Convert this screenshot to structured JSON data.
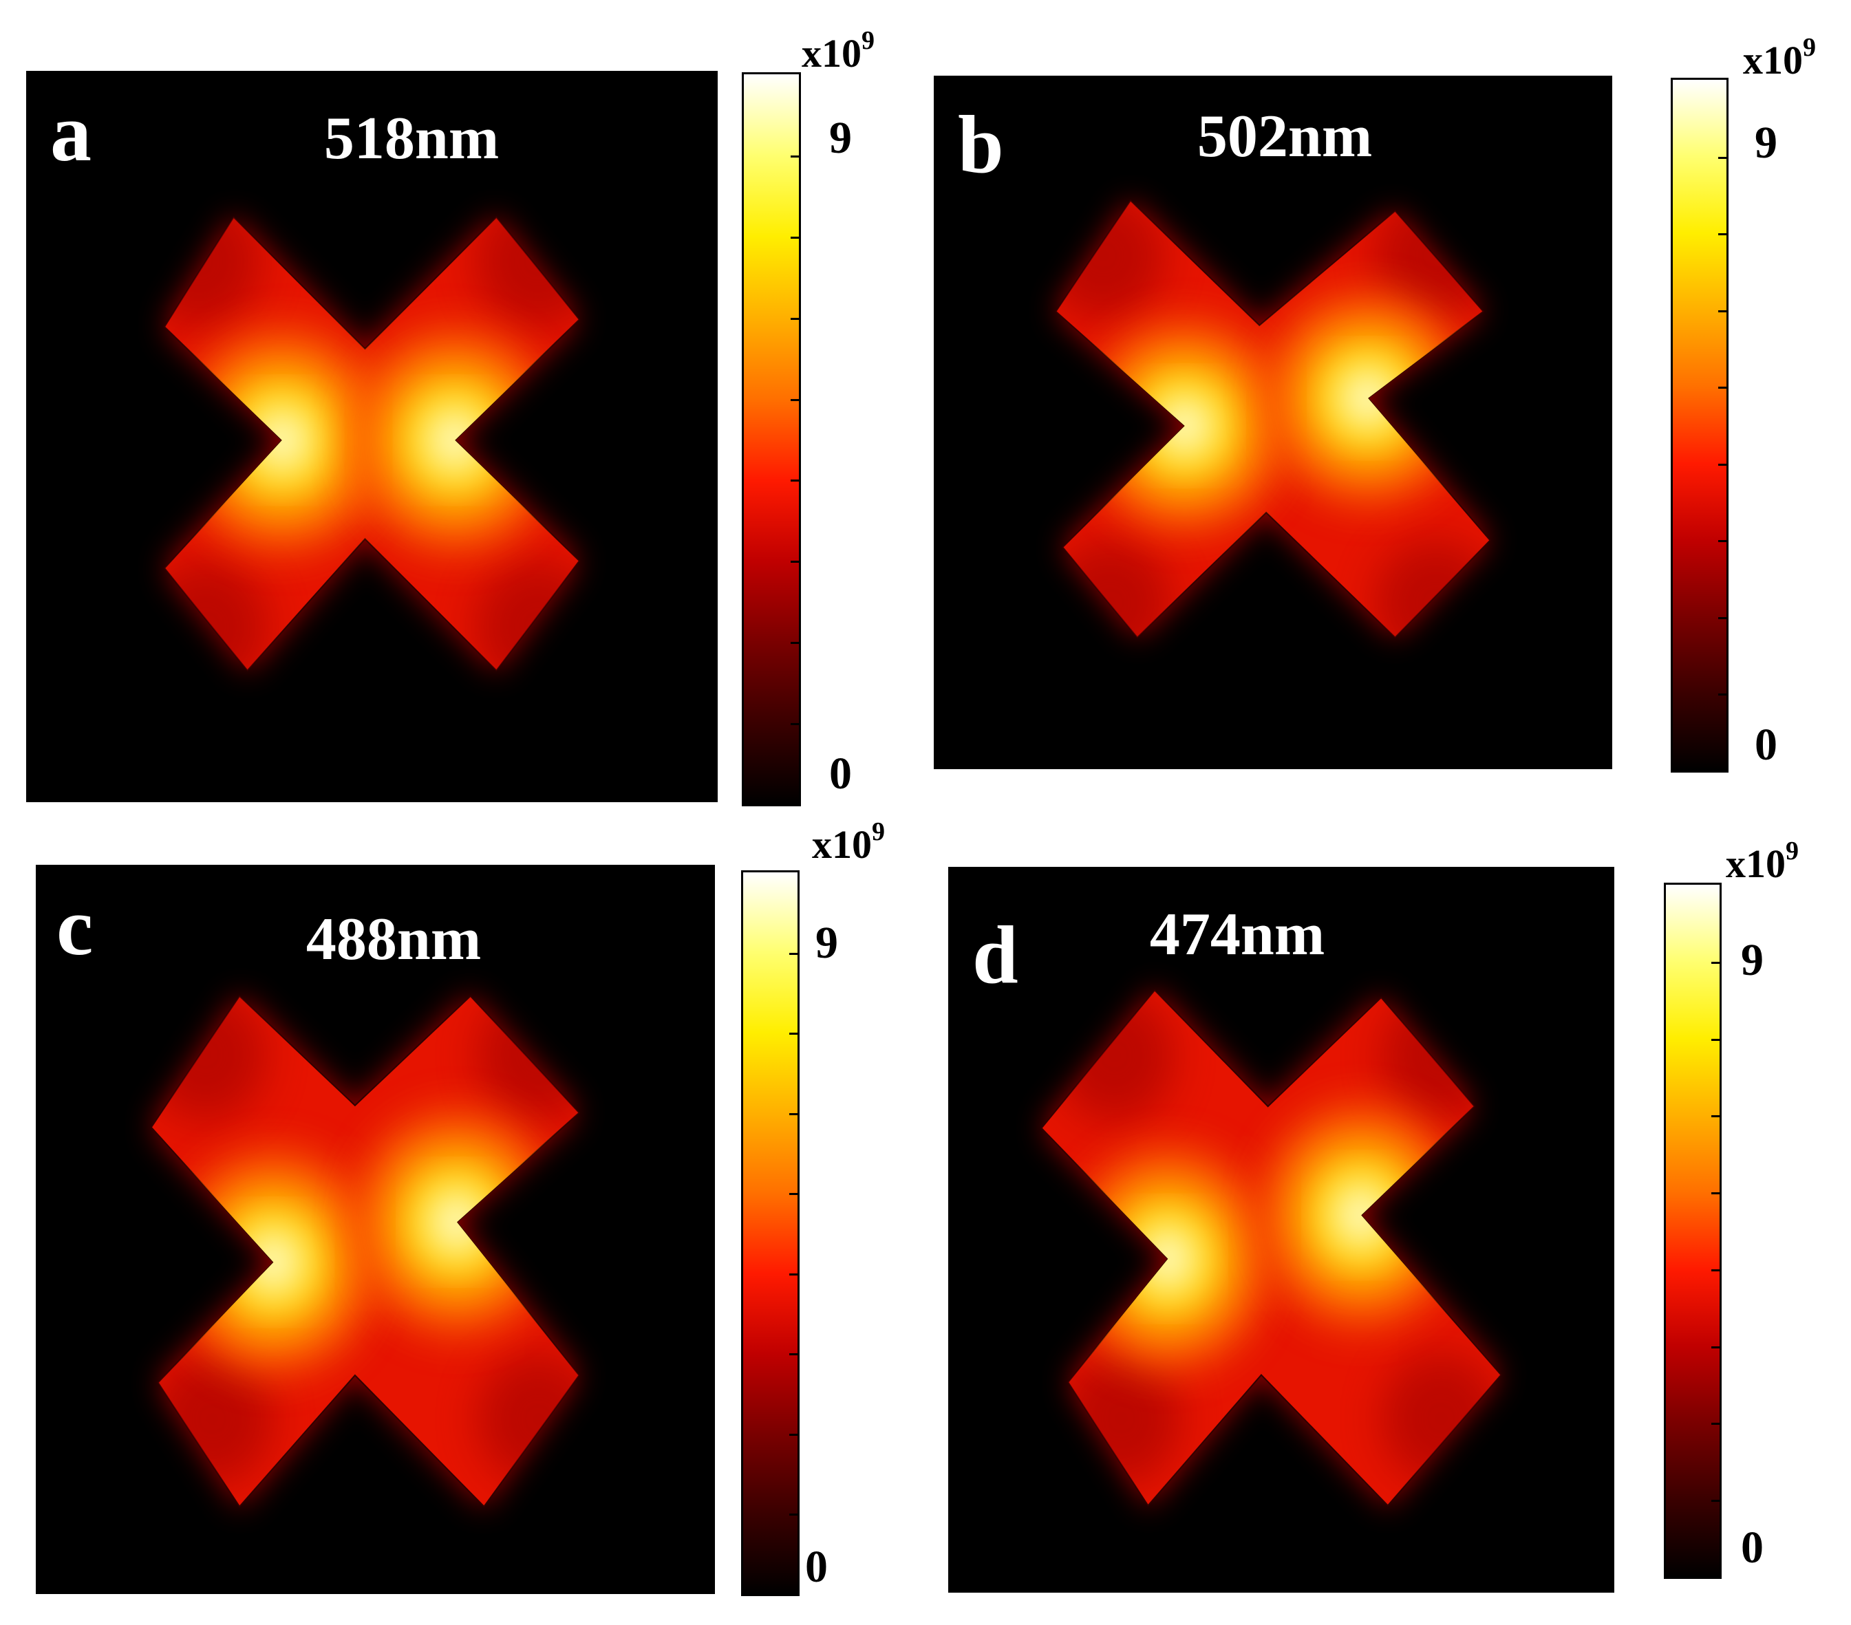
{
  "colorbar": {
    "gradient": [
      "#000000",
      "#3a0000",
      "#7a0000",
      "#c00000",
      "#ff1a00",
      "#ff7000",
      "#ffb000",
      "#ffee00",
      "#ffff70",
      "#ffffff"
    ]
  },
  "panels": [
    {
      "id": "a",
      "letter": "a",
      "wavelength": "518nm",
      "cb_max": "9",
      "cb_min": "0",
      "cb_exp_base": "x10",
      "cb_exp_power": "9"
    },
    {
      "id": "b",
      "letter": "b",
      "wavelength": "502nm",
      "cb_max": "9",
      "cb_min": "0",
      "cb_exp_base": "x10",
      "cb_exp_power": "9"
    },
    {
      "id": "c",
      "letter": "c",
      "wavelength": "488nm",
      "cb_max": "9",
      "cb_min": "0",
      "cb_exp_base": "x10",
      "cb_exp_power": "9"
    },
    {
      "id": "d",
      "letter": "d",
      "wavelength": "474nm",
      "cb_max": "9",
      "cb_min": "0",
      "cb_exp_base": "x10",
      "cb_exp_power": "9"
    }
  ]
}
